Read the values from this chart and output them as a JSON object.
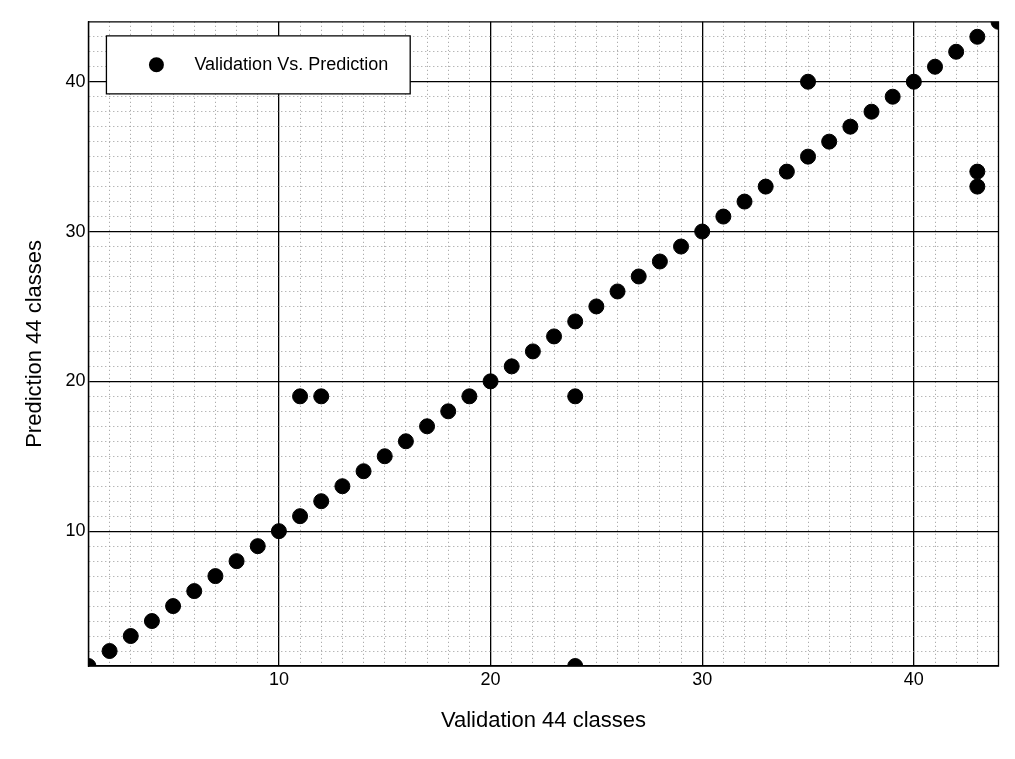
{
  "chart_data": {
    "type": "scatter",
    "xlabel": "Validation 44 classes",
    "ylabel": "Prediction 44 classes",
    "x": [
      1,
      2,
      3,
      4,
      5,
      6,
      7,
      8,
      9,
      10,
      11,
      12,
      13,
      14,
      15,
      16,
      17,
      18,
      19,
      20,
      21,
      22,
      23,
      24,
      25,
      26,
      27,
      28,
      29,
      30,
      31,
      32,
      33,
      34,
      35,
      36,
      37,
      38,
      39,
      40,
      41,
      42,
      43,
      44,
      11,
      12,
      24,
      24,
      35,
      43,
      43
    ],
    "series": [
      {
        "name": "Validation Vs. Prediction",
        "color": "#000000",
        "values": [
          1,
          2,
          3,
          4,
          5,
          6,
          7,
          8,
          9,
          10,
          11,
          12,
          13,
          14,
          15,
          16,
          17,
          18,
          19,
          20,
          21,
          22,
          23,
          24,
          25,
          26,
          27,
          28,
          29,
          30,
          31,
          32,
          33,
          34,
          35,
          36,
          37,
          38,
          39,
          40,
          41,
          42,
          43,
          44,
          19,
          19,
          19,
          1,
          40,
          34,
          33
        ]
      }
    ],
    "xlim": [
      1,
      44
    ],
    "ylim": [
      1,
      44
    ],
    "xticks": [
      {
        "value": 2,
        "label": null
      },
      {
        "value": 3,
        "label": null
      },
      {
        "value": 4,
        "label": null
      },
      {
        "value": 5,
        "label": null
      },
      {
        "value": 6,
        "label": null
      },
      {
        "value": 7,
        "label": null
      },
      {
        "value": 8,
        "label": null
      },
      {
        "value": 9,
        "label": null
      },
      10,
      {
        "value": 11,
        "label": null
      },
      {
        "value": 12,
        "label": null
      },
      {
        "value": 13,
        "label": null
      },
      {
        "value": 14,
        "label": null
      },
      {
        "value": 15,
        "label": null
      },
      {
        "value": 16,
        "label": null
      },
      {
        "value": 17,
        "label": null
      },
      {
        "value": 18,
        "label": null
      },
      {
        "value": 19,
        "label": null
      },
      20,
      {
        "value": 21,
        "label": null
      },
      {
        "value": 22,
        "label": null
      },
      {
        "value": 23,
        "label": null
      },
      {
        "value": 24,
        "label": null
      },
      {
        "value": 25,
        "label": null
      },
      {
        "value": 26,
        "label": null
      },
      {
        "value": 27,
        "label": null
      },
      {
        "value": 28,
        "label": null
      },
      {
        "value": 29,
        "label": null
      },
      30,
      {
        "value": 31,
        "label": null
      },
      {
        "value": 32,
        "label": null
      },
      {
        "value": 33,
        "label": null
      },
      {
        "value": 34,
        "label": null
      },
      {
        "value": 35,
        "label": null
      },
      {
        "value": 36,
        "label": null
      },
      {
        "value": 37,
        "label": null
      },
      {
        "value": 38,
        "label": null
      },
      {
        "value": 39,
        "label": null
      },
      40,
      {
        "value": 41,
        "label": null
      },
      {
        "value": 42,
        "label": null
      },
      {
        "value": 43,
        "label": null
      }
    ],
    "yticks": [
      {
        "value": 2,
        "label": null
      },
      {
        "value": 3,
        "label": null
      },
      {
        "value": 4,
        "label": null
      },
      {
        "value": 5,
        "label": null
      },
      {
        "value": 6,
        "label": null
      },
      {
        "value": 7,
        "label": null
      },
      {
        "value": 8,
        "label": null
      },
      {
        "value": 9,
        "label": null
      },
      10,
      {
        "value": 11,
        "label": null
      },
      {
        "value": 12,
        "label": null
      },
      {
        "value": 13,
        "label": null
      },
      {
        "value": 14,
        "label": null
      },
      {
        "value": 15,
        "label": null
      },
      {
        "value": 16,
        "label": null
      },
      {
        "value": 17,
        "label": null
      },
      {
        "value": 18,
        "label": null
      },
      {
        "value": 19,
        "label": null
      },
      20,
      {
        "value": 21,
        "label": null
      },
      {
        "value": 22,
        "label": null
      },
      {
        "value": 23,
        "label": null
      },
      {
        "value": 24,
        "label": null
      },
      {
        "value": 25,
        "label": null
      },
      {
        "value": 26,
        "label": null
      },
      {
        "value": 27,
        "label": null
      },
      {
        "value": 28,
        "label": null
      },
      {
        "value": 29,
        "label": null
      },
      30,
      {
        "value": 31,
        "label": null
      },
      {
        "value": 32,
        "label": null
      },
      {
        "value": 33,
        "label": null
      },
      {
        "value": 34,
        "label": null
      },
      {
        "value": 35,
        "label": null
      },
      {
        "value": 36,
        "label": null
      },
      {
        "value": 37,
        "label": null
      },
      {
        "value": 38,
        "label": null
      },
      {
        "value": 39,
        "label": null
      },
      40,
      {
        "value": 41,
        "label": null
      },
      {
        "value": 42,
        "label": null
      },
      {
        "value": 43,
        "label": null
      }
    ],
    "grid": true,
    "legend": "top left",
    "marker": "circle"
  }
}
